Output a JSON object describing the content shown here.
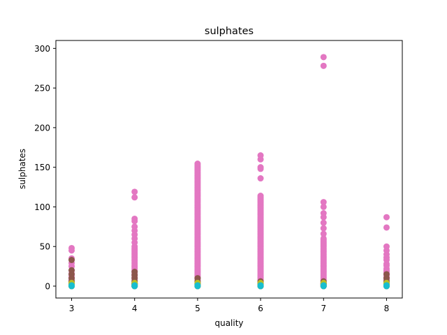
{
  "chart_data": {
    "type": "scatter",
    "title": "sulphates",
    "xlabel": "quality",
    "ylabel": "sulphates",
    "xlim": [
      2.75,
      8.25
    ],
    "ylim": [
      -15,
      310
    ],
    "xticks": [
      3,
      4,
      5,
      6,
      7,
      8
    ],
    "yticks": [
      0,
      50,
      100,
      150,
      200,
      250,
      300
    ],
    "grid": false,
    "series": [
      {
        "color": "#e377c2",
        "points": [
          {
            "x": 3,
            "ys": [
              0,
              2,
              4,
              6,
              8,
              10,
              13,
              16,
              20,
              25,
              29,
              35,
              45,
              48
            ]
          },
          {
            "x": 4,
            "ys": [
              0,
              2,
              4,
              6,
              8,
              10,
              12,
              14,
              16,
              18,
              20,
              22,
              24,
              26,
              28,
              30,
              32,
              34,
              36,
              38,
              40,
              42,
              44,
              46,
              48,
              50,
              55,
              60,
              65,
              70,
              75,
              82,
              85,
              112,
              119
            ]
          },
          {
            "x": 5,
            "range": [
              0,
              155
            ],
            "step": 1.5
          },
          {
            "x": 6,
            "range": [
              0,
              114
            ],
            "step": 1.5,
            "extra": [
              136,
              148,
              150,
              160,
              165
            ]
          },
          {
            "x": 7,
            "range": [
              0,
              60
            ],
            "step": 1.5,
            "extra": [
              66,
              73,
              80,
              87,
              92,
              100,
              106,
              278,
              289
            ]
          },
          {
            "x": 8,
            "ys": [
              0,
              2,
              4,
              6,
              8,
              10,
              12,
              14,
              16,
              18,
              20,
              22,
              26,
              28,
              33,
              36,
              40,
              45,
              50,
              74,
              87
            ]
          }
        ]
      },
      {
        "color": "#8c564b",
        "points": [
          {
            "x": 3,
            "ys": [
              0,
              3,
              6,
              10,
              15,
              20,
              33
            ]
          },
          {
            "x": 4,
            "ys": [
              0,
              3,
              6,
              10,
              14,
              18
            ]
          },
          {
            "x": 5,
            "ys": [
              0,
              3,
              6,
              10
            ]
          },
          {
            "x": 6,
            "ys": [
              0,
              3,
              6
            ]
          },
          {
            "x": 7,
            "ys": [
              0,
              3,
              6
            ]
          },
          {
            "x": 8,
            "ys": [
              0,
              3,
              6,
              10,
              15
            ]
          }
        ]
      },
      {
        "color": "#7f7f7f",
        "points": [
          {
            "x": 3,
            "ys": [
              0,
              2,
              4
            ]
          },
          {
            "x": 4,
            "ys": [
              0,
              2,
              4
            ]
          },
          {
            "x": 5,
            "ys": [
              0,
              2,
              4
            ]
          },
          {
            "x": 6,
            "ys": [
              0,
              2,
              4
            ]
          },
          {
            "x": 7,
            "ys": [
              0,
              2,
              4
            ]
          },
          {
            "x": 8,
            "ys": [
              0,
              2,
              4
            ]
          }
        ]
      },
      {
        "color": "#bcbd22",
        "points": [
          {
            "x": 3,
            "ys": [
              0,
              2,
              4
            ]
          },
          {
            "x": 4,
            "ys": [
              0,
              2,
              4
            ]
          },
          {
            "x": 5,
            "ys": [
              0,
              2,
              4
            ]
          },
          {
            "x": 6,
            "ys": [
              0,
              2,
              4
            ]
          },
          {
            "x": 7,
            "ys": [
              0,
              2,
              4
            ]
          },
          {
            "x": 8,
            "ys": [
              0,
              2,
              4
            ]
          }
        ]
      },
      {
        "color": "#17becf",
        "points": [
          {
            "x": 3,
            "ys": [
              0,
              1
            ]
          },
          {
            "x": 4,
            "ys": [
              0,
              1
            ]
          },
          {
            "x": 5,
            "ys": [
              0,
              1
            ]
          },
          {
            "x": 6,
            "ys": [
              0,
              1
            ]
          },
          {
            "x": 7,
            "ys": [
              0,
              1
            ]
          },
          {
            "x": 8,
            "ys": [
              0,
              1
            ]
          }
        ]
      }
    ]
  }
}
